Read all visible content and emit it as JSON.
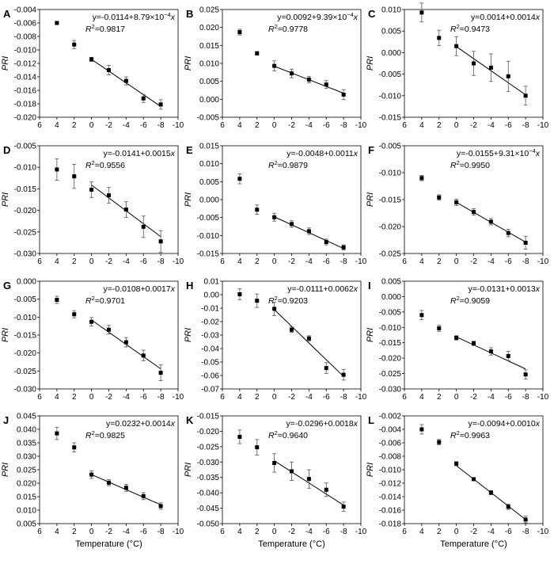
{
  "x_axis_label": "Temperature (°C)",
  "chart_data": [
    {
      "type": "scatter",
      "letter": "A",
      "ylabel": "PRI",
      "xlabel": "",
      "x_ticks": [
        "6",
        "4",
        "2",
        "0",
        "-2",
        "-4",
        "-6",
        "-8",
        "-10"
      ],
      "xlim": [
        6,
        -10
      ],
      "ylim": [
        -0.02,
        -0.004
      ],
      "y_ticks": [
        "-0.004",
        "-0.006",
        "-0.008",
        "-0.010",
        "-0.012",
        "-0.014",
        "-0.016",
        "-0.018",
        "-0.020"
      ],
      "eq_prefix": "y=-0.0114+8.79×10",
      "eq_exp": "−4",
      "eq_suffix": "x",
      "r2_value": "=0.9817",
      "points": [
        {
          "x": 4,
          "y": -0.006,
          "err": 0.0002
        },
        {
          "x": 2,
          "y": -0.0092,
          "err": 0.0006
        },
        {
          "x": 0,
          "y": -0.0114,
          "err": 0.0003
        },
        {
          "x": -2,
          "y": -0.013,
          "err": 0.0007
        },
        {
          "x": -4,
          "y": -0.0146,
          "err": 0.0006
        },
        {
          "x": -6,
          "y": -0.0172,
          "err": 0.0006
        },
        {
          "x": -8,
          "y": -0.0181,
          "err": 0.0007
        }
      ],
      "fit": [
        [
          0,
          -0.0114
        ],
        [
          -8,
          -0.0184
        ]
      ]
    },
    {
      "type": "scatter",
      "letter": "B",
      "ylabel": "PRI",
      "xlabel": "",
      "x_ticks": [
        "6",
        "4",
        "2",
        "0",
        "-2",
        "-4",
        "-6",
        "-8",
        "-10"
      ],
      "xlim": [
        6,
        -10
      ],
      "ylim": [
        -0.005,
        0.025
      ],
      "y_ticks": [
        "0.025",
        "0.020",
        "0.015",
        "0.010",
        "0.005",
        "0.000",
        "-0.005"
      ],
      "eq_prefix": "y=0.0092+9.39×10",
      "eq_exp": "−4",
      "eq_suffix": "x",
      "r2_value": "=0.9778",
      "points": [
        {
          "x": 4,
          "y": 0.0187,
          "err": 0.0008
        },
        {
          "x": 2,
          "y": 0.0128,
          "err": 0.0005
        },
        {
          "x": 0,
          "y": 0.0093,
          "err": 0.0014
        },
        {
          "x": -2,
          "y": 0.0072,
          "err": 0.0012
        },
        {
          "x": -4,
          "y": 0.0055,
          "err": 0.0009
        },
        {
          "x": -6,
          "y": 0.0041,
          "err": 0.0011
        },
        {
          "x": -8,
          "y": 0.0013,
          "err": 0.0014
        }
      ],
      "fit": [
        [
          0,
          0.0092
        ],
        [
          -8,
          0.0017
        ]
      ]
    },
    {
      "type": "scatter",
      "letter": "C",
      "ylabel": "PRI",
      "xlabel": "",
      "x_ticks": [
        "6",
        "4",
        "2",
        "0",
        "-2",
        "-4",
        "-6",
        "-8",
        "-10"
      ],
      "xlim": [
        6,
        -10
      ],
      "ylim": [
        -0.015,
        0.01
      ],
      "y_ticks": [
        "0.010",
        "0.005",
        "0.000",
        "-0.005",
        "-0.010",
        "-0.015"
      ],
      "eq_prefix": "y=0.0014+0.0014",
      "eq_exp": "",
      "eq_suffix": "x",
      "r2_value": "=0.9473",
      "points": [
        {
          "x": 4,
          "y": 0.0093,
          "err": 0.0022
        },
        {
          "x": 2,
          "y": 0.0034,
          "err": 0.0018
        },
        {
          "x": 0,
          "y": 0.0015,
          "err": 0.0022
        },
        {
          "x": -2,
          "y": -0.0025,
          "err": 0.0028
        },
        {
          "x": -4,
          "y": -0.0035,
          "err": 0.0032
        },
        {
          "x": -6,
          "y": -0.0055,
          "err": 0.0035
        },
        {
          "x": -8,
          "y": -0.01,
          "err": 0.0022
        }
      ],
      "fit": [
        [
          0,
          0.0014
        ],
        [
          -8,
          -0.0098
        ]
      ]
    },
    {
      "type": "scatter",
      "letter": "D",
      "ylabel": "PRI",
      "xlabel": "",
      "x_ticks": [
        "6",
        "4",
        "2",
        "0",
        "-2",
        "-4",
        "-6",
        "-8",
        "-10"
      ],
      "xlim": [
        6,
        -10
      ],
      "ylim": [
        -0.03,
        -0.005
      ],
      "y_ticks": [
        "-0.005",
        "-0.010",
        "-0.015",
        "-0.020",
        "-0.025",
        "-0.030"
      ],
      "eq_prefix": "y=-0.0141+0.0015",
      "eq_exp": "",
      "eq_suffix": "x",
      "r2_value": "=0.9556",
      "points": [
        {
          "x": 4,
          "y": -0.0105,
          "err": 0.0025
        },
        {
          "x": 2,
          "y": -0.0121,
          "err": 0.0028
        },
        {
          "x": 0,
          "y": -0.0152,
          "err": 0.0018
        },
        {
          "x": -2,
          "y": -0.0165,
          "err": 0.0018
        },
        {
          "x": -4,
          "y": -0.0198,
          "err": 0.0018
        },
        {
          "x": -6,
          "y": -0.0238,
          "err": 0.0025
        },
        {
          "x": -8,
          "y": -0.0272,
          "err": 0.0025
        }
      ],
      "fit": [
        [
          0,
          -0.0141
        ],
        [
          -8,
          -0.0261
        ]
      ]
    },
    {
      "type": "scatter",
      "letter": "E",
      "ylabel": "PRI",
      "xlabel": "",
      "x_ticks": [
        "6",
        "4",
        "2",
        "0",
        "-2",
        "-4",
        "-6",
        "-8",
        "-10"
      ],
      "xlim": [
        6,
        -10
      ],
      "ylim": [
        -0.015,
        0.015
      ],
      "y_ticks": [
        "0.015",
        "0.010",
        "0.005",
        "0.000",
        "-0.005",
        "-0.010",
        "-0.015"
      ],
      "eq_prefix": "y=-0.0048+0.0011",
      "eq_exp": "",
      "eq_suffix": "x",
      "r2_value": "=0.9879",
      "points": [
        {
          "x": 4,
          "y": 0.0058,
          "err": 0.0014
        },
        {
          "x": 2,
          "y": -0.0028,
          "err": 0.0013
        },
        {
          "x": 0,
          "y": -0.0049,
          "err": 0.0011
        },
        {
          "x": -2,
          "y": -0.0068,
          "err": 0.0009
        },
        {
          "x": -4,
          "y": -0.0088,
          "err": 0.0009
        },
        {
          "x": -6,
          "y": -0.0118,
          "err": 0.0008
        },
        {
          "x": -8,
          "y": -0.0133,
          "err": 0.0007
        }
      ],
      "fit": [
        [
          0,
          -0.0048
        ],
        [
          -8,
          -0.0136
        ]
      ]
    },
    {
      "type": "scatter",
      "letter": "F",
      "ylabel": "PRI",
      "xlabel": "",
      "x_ticks": [
        "6",
        "4",
        "2",
        "0",
        "-2",
        "-4",
        "-6",
        "-8",
        "-10"
      ],
      "xlim": [
        6,
        -10
      ],
      "ylim": [
        -0.025,
        -0.005
      ],
      "y_ticks": [
        "-0.005",
        "-0.010",
        "-0.015",
        "-0.020",
        "-0.025"
      ],
      "eq_prefix": "y=-0.0155+9.31×10",
      "eq_exp": "−4",
      "eq_suffix": "x",
      "r2_value": "=0.9950",
      "points": [
        {
          "x": 4,
          "y": -0.011,
          "err": 0.0005
        },
        {
          "x": 2,
          "y": -0.0146,
          "err": 0.0005
        },
        {
          "x": 0,
          "y": -0.0155,
          "err": 0.0006
        },
        {
          "x": -2,
          "y": -0.0173,
          "err": 0.0006
        },
        {
          "x": -4,
          "y": -0.0191,
          "err": 0.0006
        },
        {
          "x": -6,
          "y": -0.0212,
          "err": 0.0007
        },
        {
          "x": -8,
          "y": -0.023,
          "err": 0.0012
        }
      ],
      "fit": [
        [
          0,
          -0.0155
        ],
        [
          -8,
          -0.0229
        ]
      ]
    },
    {
      "type": "scatter",
      "letter": "G",
      "ylabel": "PRI",
      "xlabel": "",
      "x_ticks": [
        "6",
        "4",
        "2",
        "0",
        "-2",
        "-4",
        "-6",
        "-8",
        "-10"
      ],
      "xlim": [
        6,
        -10
      ],
      "ylim": [
        -0.03,
        0.0
      ],
      "y_ticks": [
        "0.000",
        "-0.005",
        "-0.010",
        "-0.015",
        "-0.020",
        "-0.025",
        "-0.030"
      ],
      "eq_prefix": "y=-0.0108+0.0017",
      "eq_exp": "",
      "eq_suffix": "x",
      "r2_value": "=0.9701",
      "points": [
        {
          "x": 4,
          "y": -0.0052,
          "err": 0.001
        },
        {
          "x": 2,
          "y": -0.0092,
          "err": 0.001
        },
        {
          "x": 0,
          "y": -0.0113,
          "err": 0.0012
        },
        {
          "x": -2,
          "y": -0.0135,
          "err": 0.0012
        },
        {
          "x": -4,
          "y": -0.017,
          "err": 0.0013
        },
        {
          "x": -6,
          "y": -0.0207,
          "err": 0.0015
        },
        {
          "x": -8,
          "y": -0.0255,
          "err": 0.0022
        }
      ],
      "fit": [
        [
          0,
          -0.0108
        ],
        [
          -8,
          -0.0244
        ]
      ]
    },
    {
      "type": "scatter",
      "letter": "H",
      "ylabel": "PRI",
      "xlabel": "",
      "x_ticks": [
        "6",
        "4",
        "2",
        "0",
        "-2",
        "-4",
        "-6",
        "-8",
        "-10"
      ],
      "xlim": [
        6,
        -10
      ],
      "ylim": [
        -0.07,
        0.01
      ],
      "y_ticks": [
        "0.01",
        "0.00",
        "-0.01",
        "-0.02",
        "-0.03",
        "-0.04",
        "-0.05",
        "-0.06",
        "-0.07"
      ],
      "eq_prefix": "y=-0.0111+0.0062",
      "eq_exp": "",
      "eq_suffix": "x",
      "r2_value": "=0.9203",
      "points": [
        {
          "x": 4,
          "y": 0.0003,
          "err": 0.004
        },
        {
          "x": 2,
          "y": -0.0045,
          "err": 0.005
        },
        {
          "x": 0,
          "y": -0.0105,
          "err": 0.005
        },
        {
          "x": -2,
          "y": -0.026,
          "err": 0.002
        },
        {
          "x": -4,
          "y": -0.0325,
          "err": 0.002
        },
        {
          "x": -6,
          "y": -0.0545,
          "err": 0.004
        },
        {
          "x": -8,
          "y": -0.0595,
          "err": 0.004
        }
      ],
      "fit": [
        [
          0,
          -0.0111
        ],
        [
          -8,
          -0.0607
        ]
      ]
    },
    {
      "type": "scatter",
      "letter": "I",
      "ylabel": "PRI",
      "xlabel": "",
      "x_ticks": [
        "6",
        "4",
        "2",
        "0",
        "-2",
        "-4",
        "-6",
        "-8",
        "-10"
      ],
      "xlim": [
        6,
        -10
      ],
      "ylim": [
        -0.03,
        0.005
      ],
      "y_ticks": [
        "0.005",
        "0.000",
        "-0.005",
        "-0.010",
        "-0.015",
        "-0.020",
        "-0.025",
        "-0.030"
      ],
      "eq_prefix": "y=-0.0131+0.0013",
      "eq_exp": "",
      "eq_suffix": "x",
      "r2_value": "=0.9059",
      "points": [
        {
          "x": 4,
          "y": -0.006,
          "err": 0.0015
        },
        {
          "x": 2,
          "y": -0.0103,
          "err": 0.001
        },
        {
          "x": 0,
          "y": -0.0134,
          "err": 0.0007
        },
        {
          "x": -2,
          "y": -0.0152,
          "err": 0.0007
        },
        {
          "x": -4,
          "y": -0.0178,
          "err": 0.0012
        },
        {
          "x": -6,
          "y": -0.0193,
          "err": 0.0015
        },
        {
          "x": -8,
          "y": -0.0253,
          "err": 0.0015
        }
      ],
      "fit": [
        [
          0,
          -0.0131
        ],
        [
          -8,
          -0.0235
        ]
      ]
    },
    {
      "type": "scatter",
      "letter": "J",
      "ylabel": "PRI",
      "xlabel": "Temperature (°C)",
      "x_ticks": [
        "6",
        "4",
        "2",
        "0",
        "-2",
        "-4",
        "-6",
        "-8",
        "-10"
      ],
      "xlim": [
        6,
        -10
      ],
      "ylim": [
        0.005,
        0.045
      ],
      "y_ticks": [
        "0.045",
        "0.040",
        "0.035",
        "0.030",
        "0.025",
        "0.020",
        "0.015",
        "0.010",
        "0.005"
      ],
      "eq_prefix": "y=0.0232+0.0014",
      "eq_exp": "",
      "eq_suffix": "x",
      "r2_value": "=0.9825",
      "points": [
        {
          "x": 4,
          "y": 0.0385,
          "err": 0.0023
        },
        {
          "x": 2,
          "y": 0.0333,
          "err": 0.0017
        },
        {
          "x": 0,
          "y": 0.0232,
          "err": 0.0014
        },
        {
          "x": -2,
          "y": 0.0202,
          "err": 0.0011
        },
        {
          "x": -4,
          "y": 0.0183,
          "err": 0.0013
        },
        {
          "x": -6,
          "y": 0.0152,
          "err": 0.0013
        },
        {
          "x": -8,
          "y": 0.0115,
          "err": 0.0012
        }
      ],
      "fit": [
        [
          0,
          0.0232
        ],
        [
          -8,
          0.012
        ]
      ]
    },
    {
      "type": "scatter",
      "letter": "K",
      "ylabel": "PRI",
      "xlabel": "Temperature (°C)",
      "x_ticks": [
        "6",
        "4",
        "2",
        "0",
        "-2",
        "-4",
        "-6",
        "-8",
        "-10"
      ],
      "xlim": [
        6,
        -10
      ],
      "ylim": [
        -0.05,
        -0.015
      ],
      "y_ticks": [
        "-0.015",
        "-0.020",
        "-0.025",
        "-0.030",
        "-0.035",
        "-0.040",
        "-0.045",
        "-0.050"
      ],
      "eq_prefix": "y=-0.0296+0.0018",
      "eq_exp": "",
      "eq_suffix": "x",
      "r2_value": "=0.9640",
      "points": [
        {
          "x": 4,
          "y": -0.0218,
          "err": 0.0022
        },
        {
          "x": 2,
          "y": -0.0252,
          "err": 0.0025
        },
        {
          "x": 0,
          "y": -0.0303,
          "err": 0.003
        },
        {
          "x": -2,
          "y": -0.033,
          "err": 0.003
        },
        {
          "x": -4,
          "y": -0.0355,
          "err": 0.003
        },
        {
          "x": -6,
          "y": -0.039,
          "err": 0.0022
        },
        {
          "x": -8,
          "y": -0.0445,
          "err": 0.0015
        }
      ],
      "fit": [
        [
          0,
          -0.0296
        ],
        [
          -8,
          -0.044
        ]
      ]
    },
    {
      "type": "scatter",
      "letter": "L",
      "ylabel": "PRI",
      "xlabel": "Temperature (°C)",
      "x_ticks": [
        "6",
        "4",
        "2",
        "0",
        "-2",
        "-4",
        "-6",
        "-8",
        "-10"
      ],
      "xlim": [
        6,
        -10
      ],
      "ylim": [
        -0.018,
        -0.002
      ],
      "y_ticks": [
        "-0.002",
        "-0.004",
        "-0.006",
        "-0.008",
        "-0.010",
        "-0.012",
        "-0.014",
        "-0.016",
        "-0.018"
      ],
      "eq_prefix": "y=-0.0094+0.0010",
      "eq_exp": "",
      "eq_suffix": "x",
      "r2_value": "=0.9963",
      "points": [
        {
          "x": 4,
          "y": -0.004,
          "err": 0.0007
        },
        {
          "x": 2,
          "y": -0.0059,
          "err": 0.0004
        },
        {
          "x": 0,
          "y": -0.0091,
          "err": 0.0003
        },
        {
          "x": -2,
          "y": -0.0114,
          "err": 0.0002
        },
        {
          "x": -4,
          "y": -0.0134,
          "err": 0.0003
        },
        {
          "x": -6,
          "y": -0.0155,
          "err": 0.0004
        },
        {
          "x": -8,
          "y": -0.0174,
          "err": 0.0005
        }
      ],
      "fit": [
        [
          0,
          -0.0094
        ],
        [
          -8,
          -0.0174
        ]
      ]
    }
  ]
}
